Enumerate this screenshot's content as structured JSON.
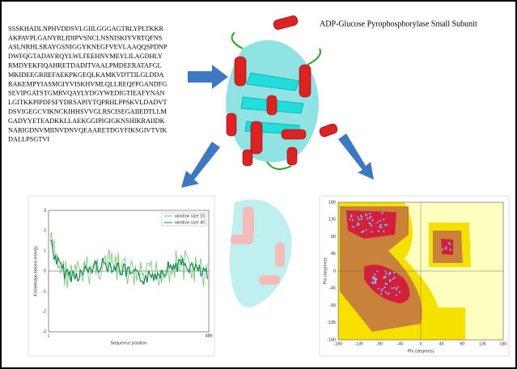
{
  "title": "ADP-Glucose Pyrophosphorylase  Small Subunit",
  "sequence": [
    "SSSKHADLNPHVDDSVLGIILGGGAGTRLYPLTKKR",
    "AKPAVPLGANYRLIDIPVSNCLNSNISKIYVRTQFNS",
    "ASLNRHLSRAYGSNIGGYKNEGFVEVLAAQQSPDNP",
    "DWFQGTADAVRQYLWLFEEHNVMEYLILAGDHLY",
    "RMDYEKFIQAHRETDADITVAALPMDEERATAFGL",
    "MKIDEEGRIIEFAEKPKGEQLKAMKVDTTILGLDDA",
    "RAKEMPYIASMGIYVISKHVMLQLLREQFPGANDFG",
    "SEVIPGATSTGMRVQAYLYDGYWEDIGTIEAFYNAN",
    "LGITKKPIPDFSFYDRSAPIYTQPRHLPPSKVLDADVT",
    "DSVIGEGCVIKNCKIHHSVVGLRSCISEGAIIEDTLLM",
    "GADYYETEADKKLLAEKGGIPIGIGKNSHIKRAIIDK",
    "NARIGDNVMIINVDNVQEAARETDGYFIKSGIVTVIK",
    "DALLPSGTVI"
  ],
  "energy_plot": {
    "x_label": "Sequence position",
    "y_label": "Knowledge-based energy",
    "legend": [
      "window size 15",
      "window size 40"
    ],
    "yticks": [
      "3",
      "2",
      "1",
      "0",
      "-1",
      "-2",
      "-3"
    ],
    "xticks": [
      "1",
      "486"
    ]
  },
  "ramachandran_plot": {
    "x_label": "Phi (degrees)",
    "y_label": "Psi (degrees)",
    "xticks": [
      "-180",
      "-135",
      "-90",
      "-45",
      "0",
      "45",
      "90",
      "135",
      "180"
    ],
    "yticks": [
      "180",
      "135",
      "90",
      "45",
      "0",
      "-45",
      "-90",
      "-135",
      "-180"
    ]
  }
}
